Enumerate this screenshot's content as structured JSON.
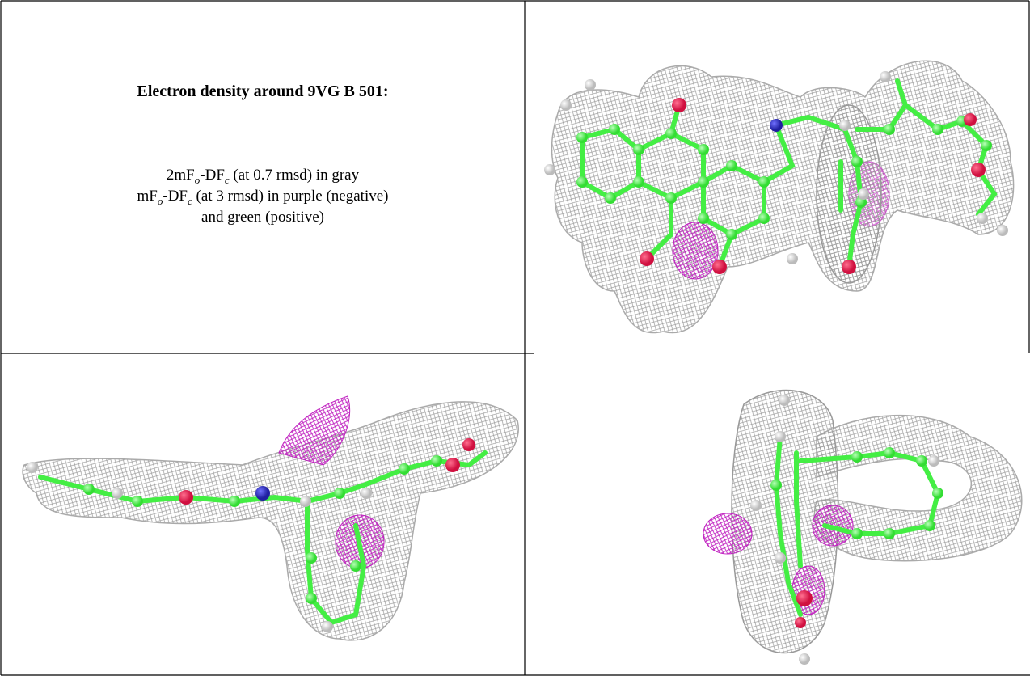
{
  "legend": {
    "title": "Electron density around 9VG B 501:",
    "lines": [
      [
        "2mF",
        "o",
        "-DF",
        "c",
        " (at 0.7 rmsd) in gray"
      ],
      [
        "mF",
        "o",
        "-DF",
        "c",
        " (at 3 rmsd) in purple (negative)"
      ],
      [
        "and green (positive)"
      ]
    ]
  }
}
